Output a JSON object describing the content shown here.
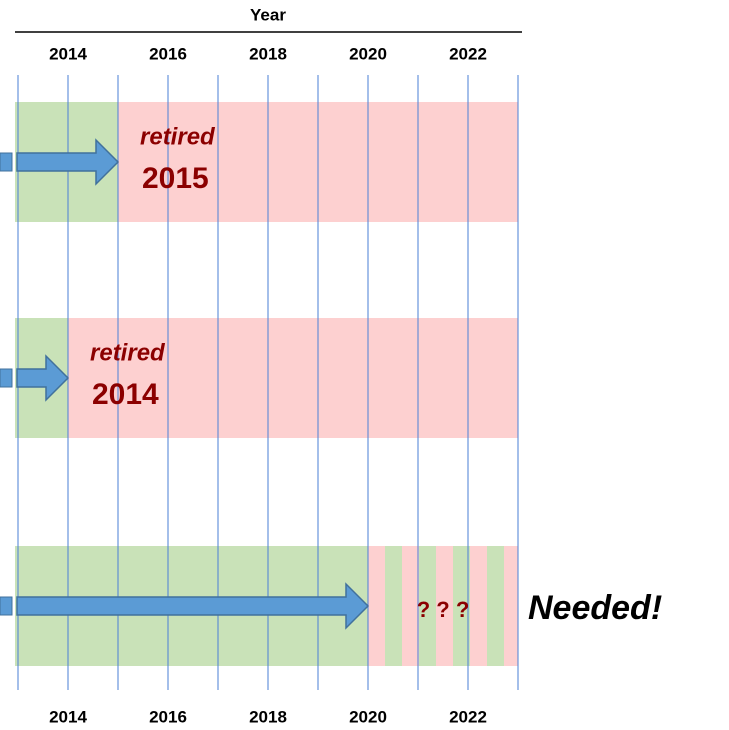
{
  "axis": {
    "title": "Year",
    "xlim": [
      2013,
      2023
    ],
    "ticks": [
      2014,
      2016,
      2018,
      2020,
      2022
    ]
  },
  "rows": [
    {
      "label": "retired",
      "year": "2015",
      "end": 2015
    },
    {
      "label": "retired",
      "year": "2014",
      "end": 2014
    },
    {
      "note": "? ? ?",
      "callout": "Needed!",
      "end": 2020
    }
  ]
}
